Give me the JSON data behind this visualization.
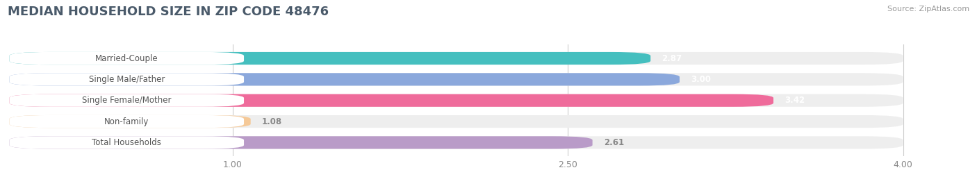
{
  "title": "MEDIAN HOUSEHOLD SIZE IN ZIP CODE 48476",
  "source": "Source: ZipAtlas.com",
  "categories": [
    "Married-Couple",
    "Single Male/Father",
    "Single Female/Mother",
    "Non-family",
    "Total Households"
  ],
  "values": [
    2.87,
    3.0,
    3.42,
    1.08,
    2.61
  ],
  "bar_colors": [
    "#45BFBF",
    "#8BA8DC",
    "#EF6B9B",
    "#F5C998",
    "#B99BC8"
  ],
  "value_text_colors": [
    "white",
    "white",
    "white",
    "#888888",
    "#888888"
  ],
  "xlim_min": 0.0,
  "xlim_max": 4.2,
  "xdata_max": 4.0,
  "xticks": [
    1.0,
    2.5,
    4.0
  ],
  "xtick_labels": [
    "1.00",
    "2.50",
    "4.00"
  ],
  "background_color": "#ffffff",
  "bar_bg_color": "#eeeeee",
  "title_fontsize": 13,
  "label_fontsize": 8.5,
  "value_fontsize": 8.5,
  "title_color": "#4a5a6a",
  "source_color": "#999999"
}
